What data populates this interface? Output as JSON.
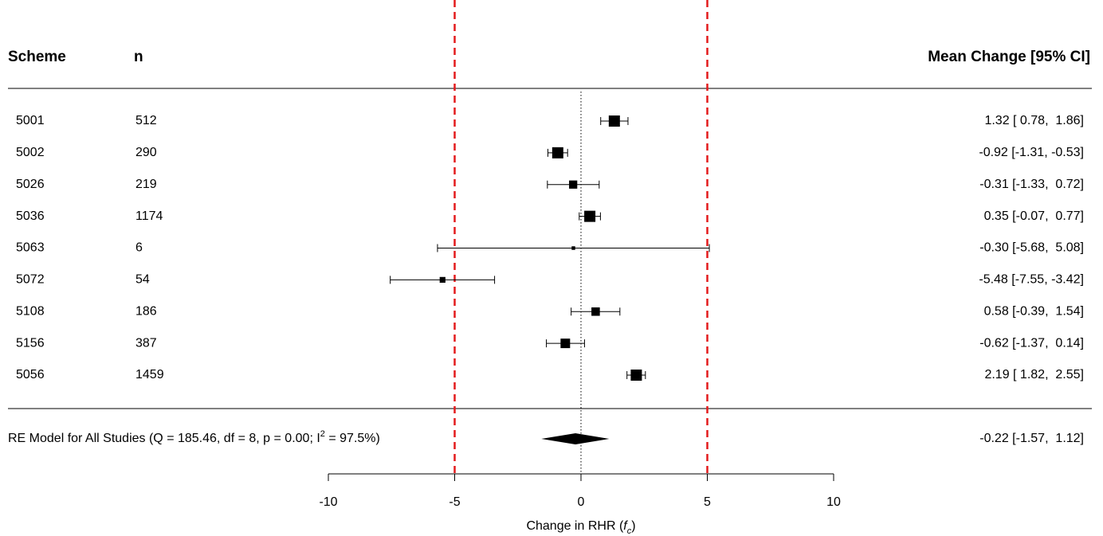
{
  "chart_data": {
    "type": "forest",
    "headers": [
      "Scheme",
      "n",
      "Mean Change [95% CI]"
    ],
    "categories": [
      "5001",
      "5002",
      "5026",
      "5036",
      "5063",
      "5072",
      "5108",
      "5156",
      "5056"
    ],
    "n": [
      512,
      290,
      219,
      1174,
      6,
      54,
      186,
      387,
      1459
    ],
    "values": [
      1.32,
      -0.92,
      -0.31,
      0.35,
      -0.3,
      -5.48,
      0.58,
      -0.62,
      2.19
    ],
    "lower": [
      0.78,
      -1.31,
      -1.33,
      -0.07,
      -5.68,
      -7.55,
      -0.39,
      -1.37,
      1.82
    ],
    "upper": [
      1.86,
      -0.53,
      0.72,
      0.77,
      5.08,
      -3.42,
      1.54,
      0.14,
      2.55
    ],
    "value_labels": [
      "1.32 [ 0.78,  1.86]",
      "-0.92 [-1.31, -0.53]",
      "-0.31 [-1.33,  0.72]",
      "0.35 [-0.07,  0.77]",
      "-0.30 [-5.68,  5.08]",
      "-5.48 [-7.55, -3.42]",
      "0.58 [-0.39,  1.54]",
      "-0.62 [-1.37,  0.14]",
      "2.19 [ 1.82,  2.55]"
    ],
    "summary": {
      "label": [
        "RE Model for All Studies (Q = 185.46, df = 8, p = 0.00; I",
        "2",
        " = 97.5%)"
      ],
      "value": -0.22,
      "lower": -1.57,
      "upper": 1.12,
      "value_label": "-0.22 [-1.57,  1.12]"
    },
    "xlim": [
      -10,
      10
    ],
    "xticks": [
      -10,
      -5,
      0,
      5,
      10
    ],
    "xlabel": [
      "Change in RHR (",
      "f",
      "c",
      ")"
    ],
    "null_value": 0,
    "ref_lines": [
      -5,
      5
    ],
    "ref_color": "#e31a1c",
    "color": "#000000"
  }
}
